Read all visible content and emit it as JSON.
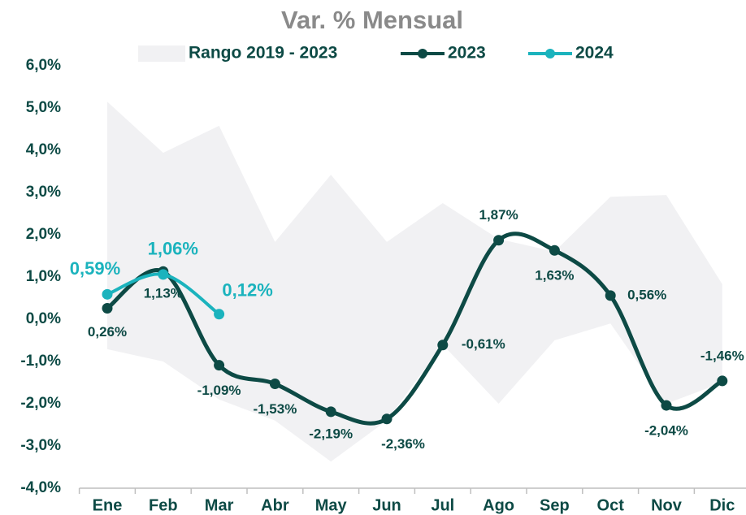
{
  "chart_data": {
    "type": "line",
    "title": "Var. % Mensual",
    "categories": [
      "Ene",
      "Feb",
      "Mar",
      "Abr",
      "May",
      "Jun",
      "Jul",
      "Ago",
      "Sep",
      "Oct",
      "Nov",
      "Dic"
    ],
    "range": {
      "name": "Rango 2019 - 2023",
      "color": "#f1f1f3",
      "upper": [
        5.15,
        3.94,
        4.58,
        1.83,
        3.42,
        1.83,
        2.75,
        1.9,
        1.6,
        2.9,
        2.94,
        0.83
      ],
      "lower": [
        -0.71,
        -1.0,
        -1.9,
        -2.4,
        -3.37,
        -2.4,
        -0.6,
        -2.0,
        -0.5,
        -0.1,
        -2.0,
        -1.5
      ]
    },
    "series": [
      {
        "name": "2023",
        "color": "#0d4a45",
        "values": [
          0.26,
          1.13,
          -1.09,
          -1.53,
          -2.19,
          -2.36,
          -0.61,
          1.87,
          1.63,
          0.56,
          -2.04,
          -1.46
        ],
        "value_labels": [
          "0,26%",
          "1,13%",
          "-1,09%",
          "-1,53%",
          "-2,19%",
          "-2,36%",
          "-0,61%",
          "1,87%",
          "1,63%",
          "0,56%",
          "-2,04%",
          "-1,46%"
        ]
      },
      {
        "name": "2024",
        "color": "#1bb3bd",
        "values": [
          0.59,
          1.06,
          0.12,
          null,
          null,
          null,
          null,
          null,
          null,
          null,
          null,
          null
        ],
        "value_labels": [
          "0,59%",
          "1,06%",
          "0,12%",
          null,
          null,
          null,
          null,
          null,
          null,
          null,
          null,
          null
        ]
      }
    ],
    "ylim": [
      -4,
      6
    ],
    "yticks": [
      {
        "value": -4,
        "label": "-4,0%"
      },
      {
        "value": -3,
        "label": "-3,0%"
      },
      {
        "value": -2,
        "label": "-2,0%"
      },
      {
        "value": -1,
        "label": "-1,0%"
      },
      {
        "value": 0,
        "label": "0,0%"
      },
      {
        "value": 1,
        "label": "1,0%"
      },
      {
        "value": 2,
        "label": "2,0%"
      },
      {
        "value": 3,
        "label": "3,0%"
      },
      {
        "value": 4,
        "label": "4,0%"
      },
      {
        "value": 5,
        "label": "5,0%"
      },
      {
        "value": 6,
        "label": "6,0%"
      }
    ]
  }
}
